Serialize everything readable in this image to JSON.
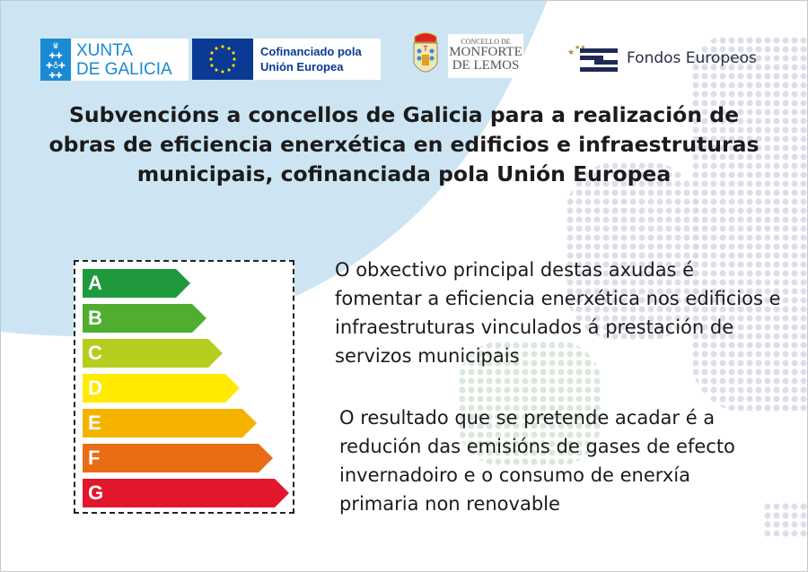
{
  "logos": {
    "xunta": {
      "line1": "XUNTA",
      "line2": "DE GALICIA"
    },
    "eu": {
      "line1": "Cofinanciado pola",
      "line2": "Unión Europea"
    },
    "concello": {
      "line1": "CONCELLO DE",
      "line2": "MONFORTE",
      "line3": "DE LEMOS"
    },
    "fondos": {
      "text": "Fondos Europeos"
    }
  },
  "title": "Subvencións a concellos de Galicia para a realización de obras de eficiencia enerxética en edificios e infraestruturas municipais, cofinanciada pola Unión Europea",
  "energy_label": {
    "classes": [
      {
        "letter": "A",
        "color": "#1e9a3c"
      },
      {
        "letter": "B",
        "color": "#4fae2f"
      },
      {
        "letter": "C",
        "color": "#b6cd1e"
      },
      {
        "letter": "D",
        "color": "#ffea00"
      },
      {
        "letter": "E",
        "color": "#f5b300"
      },
      {
        "letter": "F",
        "color": "#e96c12"
      },
      {
        "letter": "G",
        "color": "#e2162c"
      }
    ]
  },
  "paragraphs": [
    "O obxectivo principal destas axudas é fomentar a eficiencia enerxética nos edificios e infraestruturas vinculados á prestación de servizos municipais",
    "O resultado que se pretende acadar é a redución das emisións de gases de efecto invernadoiro e o consumo de enerxía primaria non renovable"
  ],
  "colors": {
    "background_blue": "#cde5f3",
    "eu_blue": "#0a3a94",
    "xunta_blue": "#1a8ad4"
  }
}
